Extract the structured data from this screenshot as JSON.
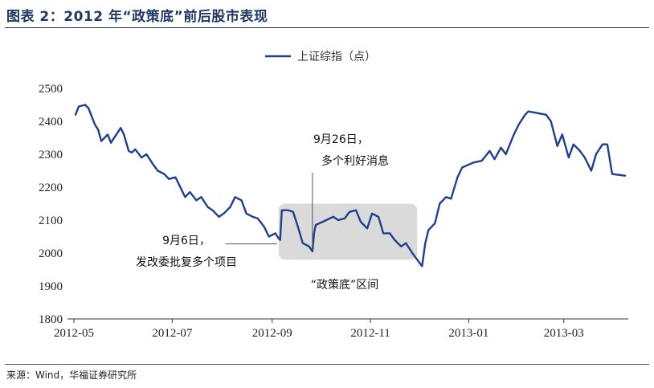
{
  "figure": {
    "title": "图表 2：2012 年“政策底”前后股市表现",
    "source": "来源：Wind，华福证券研究所"
  },
  "chart_data": {
    "type": "line",
    "title": "",
    "xlabel": "",
    "ylabel": "",
    "ylim": [
      1800,
      2500
    ],
    "yticks": [
      1800,
      1900,
      2000,
      2100,
      2200,
      2300,
      2400,
      2500
    ],
    "xticks": [
      "2012-05",
      "2012-07",
      "2012-09",
      "2012-11",
      "2013-01",
      "2013-03"
    ],
    "grid": false,
    "legend_position": "top-center",
    "series": [
      {
        "name": "上证综指（点）",
        "color": "#1f3f8f",
        "points": [
          [
            "2012-05-02",
            2420
          ],
          [
            "2012-05-04",
            2445
          ],
          [
            "2012-05-08",
            2450
          ],
          [
            "2012-05-10",
            2440
          ],
          [
            "2012-05-14",
            2390
          ],
          [
            "2012-05-16",
            2375
          ],
          [
            "2012-05-18",
            2340
          ],
          [
            "2012-05-22",
            2360
          ],
          [
            "2012-05-24",
            2335
          ],
          [
            "2012-05-28",
            2365
          ],
          [
            "2012-05-30",
            2380
          ],
          [
            "2012-06-01",
            2360
          ],
          [
            "2012-06-04",
            2310
          ],
          [
            "2012-06-06",
            2305
          ],
          [
            "2012-06-08",
            2315
          ],
          [
            "2012-06-12",
            2290
          ],
          [
            "2012-06-15",
            2300
          ],
          [
            "2012-06-19",
            2270
          ],
          [
            "2012-06-22",
            2250
          ],
          [
            "2012-06-26",
            2240
          ],
          [
            "2012-06-29",
            2225
          ],
          [
            "2012-07-03",
            2230
          ],
          [
            "2012-07-05",
            2210
          ],
          [
            "2012-07-09",
            2170
          ],
          [
            "2012-07-12",
            2185
          ],
          [
            "2012-07-16",
            2160
          ],
          [
            "2012-07-19",
            2170
          ],
          [
            "2012-07-23",
            2140
          ],
          [
            "2012-07-26",
            2130
          ],
          [
            "2012-07-30",
            2110
          ],
          [
            "2012-08-02",
            2120
          ],
          [
            "2012-08-06",
            2140
          ],
          [
            "2012-08-09",
            2170
          ],
          [
            "2012-08-13",
            2160
          ],
          [
            "2012-08-16",
            2120
          ],
          [
            "2012-08-20",
            2110
          ],
          [
            "2012-08-23",
            2105
          ],
          [
            "2012-08-27",
            2080
          ],
          [
            "2012-08-30",
            2050
          ],
          [
            "2012-09-03",
            2060
          ],
          [
            "2012-09-05",
            2045
          ],
          [
            "2012-09-06",
            2040
          ],
          [
            "2012-09-07",
            2130
          ],
          [
            "2012-09-11",
            2130
          ],
          [
            "2012-09-14",
            2125
          ],
          [
            "2012-09-17",
            2080
          ],
          [
            "2012-09-20",
            2030
          ],
          [
            "2012-09-24",
            2020
          ],
          [
            "2012-09-26",
            2005
          ],
          [
            "2012-09-27",
            2060
          ],
          [
            "2012-09-28",
            2085
          ],
          [
            "2012-10-09",
            2110
          ],
          [
            "2012-10-12",
            2100
          ],
          [
            "2012-10-16",
            2105
          ],
          [
            "2012-10-19",
            2125
          ],
          [
            "2012-10-23",
            2130
          ],
          [
            "2012-10-26",
            2095
          ],
          [
            "2012-10-30",
            2075
          ],
          [
            "2012-11-02",
            2120
          ],
          [
            "2012-11-06",
            2110
          ],
          [
            "2012-11-09",
            2060
          ],
          [
            "2012-11-13",
            2060
          ],
          [
            "2012-11-16",
            2040
          ],
          [
            "2012-11-20",
            2020
          ],
          [
            "2012-11-23",
            2030
          ],
          [
            "2012-11-27",
            2000
          ],
          [
            "2012-11-30",
            1980
          ],
          [
            "2012-12-03",
            1960
          ],
          [
            "2012-12-05",
            2030
          ],
          [
            "2012-12-07",
            2070
          ],
          [
            "2012-12-11",
            2090
          ],
          [
            "2012-12-14",
            2150
          ],
          [
            "2012-12-18",
            2170
          ],
          [
            "2012-12-21",
            2165
          ],
          [
            "2012-12-25",
            2230
          ],
          [
            "2012-12-28",
            2260
          ],
          [
            "2013-01-04",
            2275
          ],
          [
            "2013-01-09",
            2280
          ],
          [
            "2013-01-14",
            2310
          ],
          [
            "2013-01-17",
            2285
          ],
          [
            "2013-01-21",
            2320
          ],
          [
            "2013-01-24",
            2300
          ],
          [
            "2013-01-29",
            2360
          ],
          [
            "2013-02-01",
            2390
          ],
          [
            "2013-02-05",
            2420
          ],
          [
            "2013-02-07",
            2430
          ],
          [
            "2013-02-18",
            2420
          ],
          [
            "2013-02-21",
            2400
          ],
          [
            "2013-02-25",
            2325
          ],
          [
            "2013-02-28",
            2360
          ],
          [
            "2013-03-04",
            2290
          ],
          [
            "2013-03-07",
            2330
          ],
          [
            "2013-03-11",
            2310
          ],
          [
            "2013-03-14",
            2290
          ],
          [
            "2013-03-18",
            2250
          ],
          [
            "2013-03-21",
            2300
          ],
          [
            "2013-03-25",
            2330
          ],
          [
            "2013-03-28",
            2330
          ],
          [
            "2013-03-31",
            2240
          ],
          [
            "2013-04-08",
            2235
          ]
        ]
      }
    ],
    "highlight_range": {
      "x": [
        "2012-09-07",
        "2012-11-27"
      ],
      "y": [
        1980,
        2150
      ],
      "label": "“政策底”区间"
    },
    "annotations": [
      {
        "name": "annotation-sep6",
        "lines": [
          "9月6日，",
          "发改委批复多个项目"
        ],
        "x": "2012-09-06",
        "y": 2040
      },
      {
        "name": "annotation-sep26",
        "lines": [
          "9月26日，",
          "多个利好消息"
        ],
        "x": "2012-09-26",
        "y": 2005
      }
    ]
  }
}
